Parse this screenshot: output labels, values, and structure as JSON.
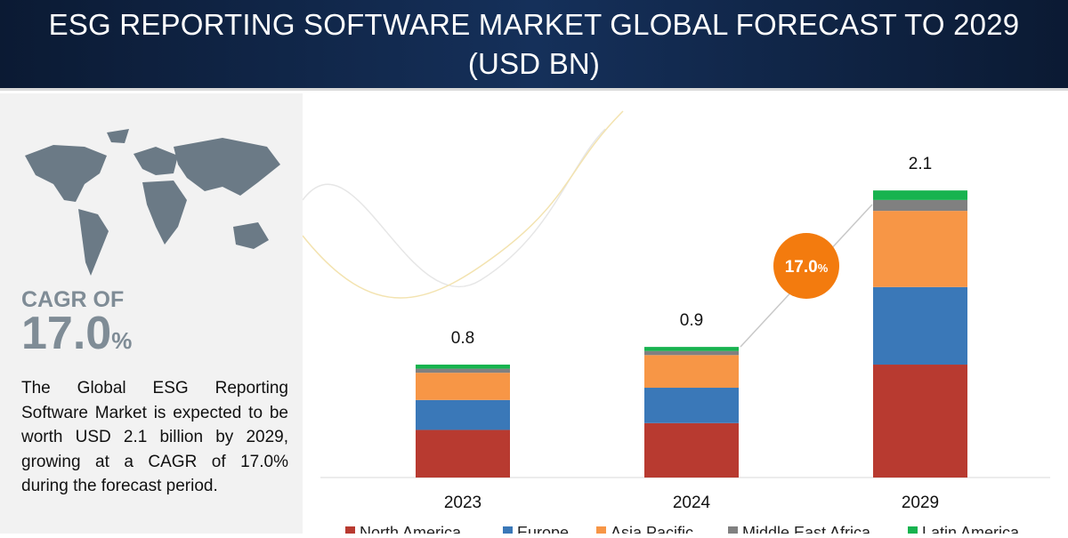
{
  "header": {
    "title_line1": "ESG REPORTING SOFTWARE MARKET GLOBAL FORECAST TO 2029",
    "title_line2": "(USD BN)"
  },
  "left_panel": {
    "cagr_label": "CAGR OF",
    "cagr_value": "17.0",
    "cagr_unit": "%",
    "description": "The Global ESG Reporting Software Market is expected to be worth USD 2.1 billion by 2029, growing at a CAGR of 17.0% during the forecast period."
  },
  "chart_data": {
    "type": "bar",
    "stacked": true,
    "categories": [
      "2023",
      "2024",
      "2029"
    ],
    "totals_labels": [
      "0.8",
      "0.9",
      "2.1"
    ],
    "series": [
      {
        "name": "North America",
        "color": "#b83a30",
        "values": [
          0.35,
          0.4,
          0.83
        ]
      },
      {
        "name": "Europe",
        "color": "#3a78b8",
        "values": [
          0.22,
          0.26,
          0.57
        ]
      },
      {
        "name": "Asia Pacific",
        "color": "#f79646",
        "values": [
          0.2,
          0.24,
          0.56
        ]
      },
      {
        "name": "Middle East Africa",
        "color": "#808080",
        "values": [
          0.03,
          0.03,
          0.08
        ]
      },
      {
        "name": "Latin America",
        "color": "#17b34f",
        "values": [
          0.03,
          0.03,
          0.07
        ]
      }
    ],
    "cagr_badge": "17.0",
    "cagr_badge_unit": "%",
    "cagr_badge_color": "#f37b0e",
    "legend_position": "bottom",
    "grid": false
  }
}
